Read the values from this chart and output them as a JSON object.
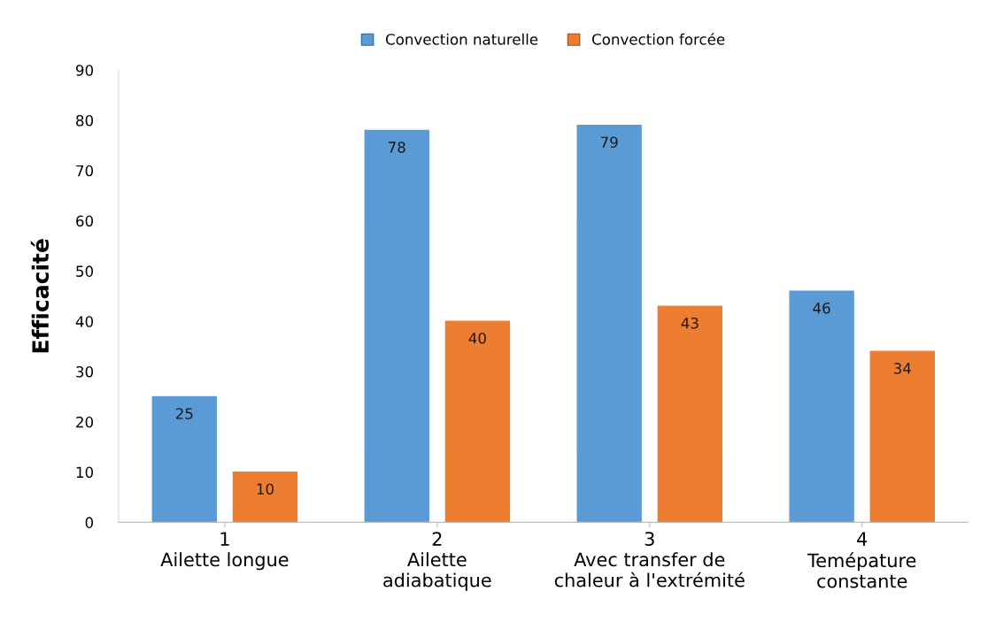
{
  "chart_data": {
    "type": "bar",
    "ylabel": "Efficacité",
    "categories": [
      "1\nAilette longue",
      "2\nAilette\nadiabatique",
      "3\nAvec transfer de\nchaleur à l'extrémité",
      "4\nTemépature\nconstante"
    ],
    "series": [
      {
        "name": "Convection naturelle",
        "color": "#5b9bd5",
        "values": [
          25,
          78,
          79,
          46
        ]
      },
      {
        "name": "Convection forcée",
        "color": "#ed7d31",
        "values": [
          10,
          40,
          43,
          34
        ]
      }
    ],
    "ylim": [
      0,
      90
    ],
    "yticks": [
      0,
      10,
      20,
      30,
      40,
      50,
      60,
      70,
      80,
      90
    ],
    "data_labels": true,
    "legend": "top",
    "grid": false
  }
}
